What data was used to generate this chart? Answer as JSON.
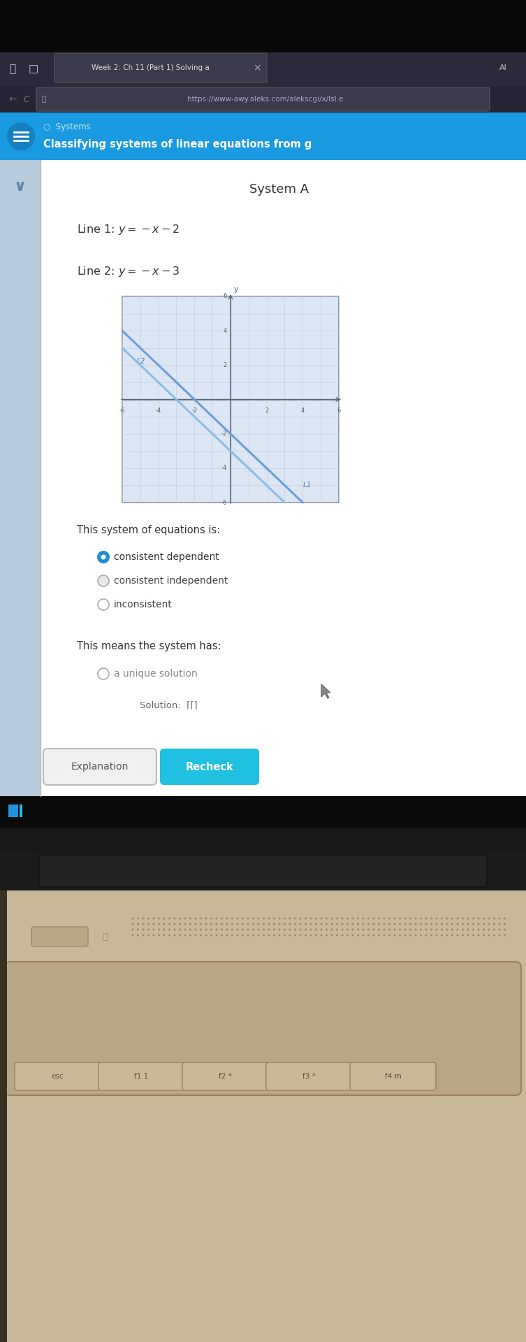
{
  "title_tab": "Week 2: Ch 11 (Part 1) Solving a",
  "url": "https://www-awy.aleks.com/alekscgi/x/lsl.e",
  "breadcrumb": "Systems",
  "page_title": "Classifying systems of linear equations from g",
  "system_label": "System A",
  "graph_xlim": [
    -6,
    6
  ],
  "graph_ylim": [
    -6,
    6
  ],
  "line1_color": "#6a9fd8",
  "line2_color": "#8bbce8",
  "line1_tag": "L1",
  "line2_tag": "L2",
  "question_text": "This system of equations is:",
  "options": [
    "consistent dependent",
    "consistent independent",
    "inconsistent"
  ],
  "selected_option": 0,
  "question2_text": "This means the system has:",
  "options2": [
    "a unique solution"
  ],
  "solution_text": "Solution:",
  "btn_explanation": "Explanation",
  "btn_recheck": "Recheck",
  "browser_dark": "#0d0d0d",
  "browser_tab_bg": "#1e1e2e",
  "header_bg": "#1a9ae0",
  "content_bg": "#eeeede",
  "white_bg": "#ffffff",
  "left_panel_bg": "#c8d8e8",
  "laptop_body_color": "#c8b89a",
  "laptop_hinge_color": "#2a2a2a",
  "laptop_screen_border": "#1a1a1a",
  "speaker_dot_color": "#9a8870",
  "graph_bg": "#dce6f5",
  "recheck_color": "#20c0e0"
}
